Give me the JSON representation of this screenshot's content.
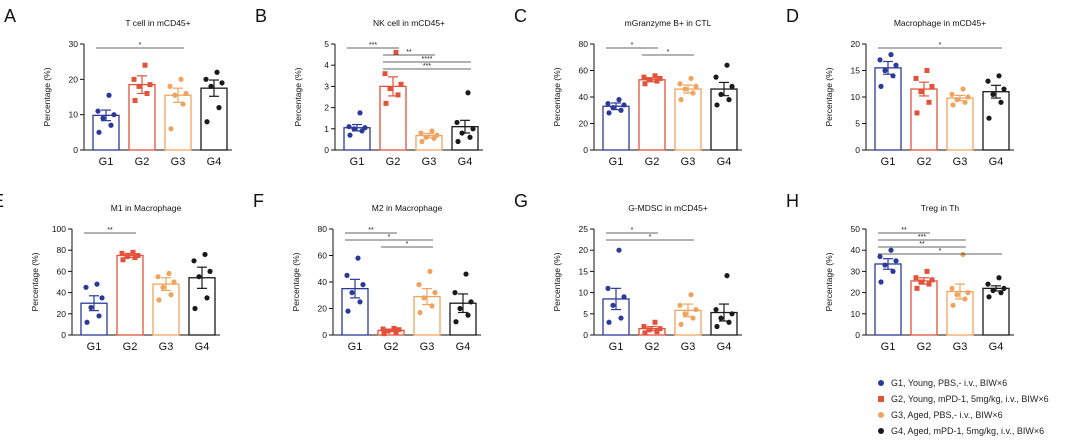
{
  "group_colors": {
    "G1": "#2b3a9a",
    "G2": "#e2523b",
    "G3": "#f0a35e",
    "G4": "#1a1a1a"
  },
  "legend": [
    {
      "group": "G1",
      "marker": "circle",
      "label": "G1, Young, PBS,-  i.v., BIW×6"
    },
    {
      "group": "G2",
      "marker": "square",
      "label": "G2, Young, mPD-1, 5mg/kg, i.v., BIW×6"
    },
    {
      "group": "G3",
      "marker": "circle",
      "label": "G3, Aged, PBS,-  i.v., BIW×6"
    },
    {
      "group": "G4",
      "marker": "circle",
      "label": "G4, Aged, mPD-1, 5mg/kg, i.v., BIW×6"
    }
  ],
  "chart_data": [
    {
      "panel": "A",
      "type": "bar",
      "title": "T cell in mCD45+",
      "ylabel": "Percentage (%)",
      "categories": [
        "G1",
        "G2",
        "G3",
        "G4"
      ],
      "ylim": [
        0,
        30
      ],
      "yticks": [
        0,
        10,
        20,
        30
      ],
      "values": [
        9.8,
        18.5,
        15.5,
        17.5
      ],
      "sem": [
        1.5,
        2.5,
        2.0,
        2.3
      ],
      "points": [
        [
          5,
          7,
          9,
          10,
          11,
          15.5
        ],
        [
          14,
          16,
          18,
          18.5,
          20,
          24
        ],
        [
          6,
          13,
          15.5,
          16,
          18,
          20
        ],
        [
          8,
          12,
          18,
          19,
          20,
          22
        ]
      ],
      "significance": [
        {
          "from": 0,
          "to": 2,
          "label": "*"
        }
      ]
    },
    {
      "panel": "B",
      "type": "bar",
      "title": "NK cell in mCD45+",
      "ylabel": "Percentage (%)",
      "categories": [
        "G1",
        "G2",
        "G3",
        "G4"
      ],
      "ylim": [
        0,
        5
      ],
      "yticks": [
        0,
        1,
        2,
        3,
        4,
        5
      ],
      "values": [
        1.05,
        3.0,
        0.68,
        1.1
      ],
      "sem": [
        0.15,
        0.45,
        0.1,
        0.3
      ],
      "points": [
        [
          0.7,
          0.9,
          1.0,
          1.05,
          1.1,
          1.75
        ],
        [
          2.2,
          2.6,
          2.9,
          3.1,
          3.6,
          4.6
        ],
        [
          0.4,
          0.55,
          0.6,
          0.7,
          0.8,
          0.9
        ],
        [
          0.4,
          0.6,
          0.8,
          1.0,
          1.3,
          2.7
        ]
      ],
      "significance": [
        {
          "from": 0,
          "to": 1,
          "label": "***"
        },
        {
          "from": 1,
          "to": 2,
          "label": "**"
        },
        {
          "from": 1,
          "to": 3,
          "label": "****"
        },
        {
          "from": 1,
          "to": 3,
          "label": "***"
        }
      ]
    },
    {
      "panel": "C",
      "type": "bar",
      "title": "mGranzyme B+ in CTL",
      "ylabel": "Percentage (%)",
      "categories": [
        "G1",
        "G2",
        "G3",
        "G4"
      ],
      "ylim": [
        0,
        80
      ],
      "yticks": [
        0,
        20,
        40,
        60,
        80
      ],
      "values": [
        33,
        53,
        46,
        46
      ],
      "sem": [
        2.5,
        1.5,
        3.0,
        5.0
      ],
      "points": [
        [
          28,
          30,
          32,
          34,
          35,
          38
        ],
        [
          50,
          52,
          53,
          54,
          55,
          56
        ],
        [
          38,
          43,
          46,
          48,
          50,
          54
        ],
        [
          34,
          38,
          42,
          48,
          55,
          64
        ]
      ],
      "significance": [
        {
          "from": 0,
          "to": 1,
          "label": "*"
        },
        {
          "from": 1,
          "to": 2,
          "label": "*"
        }
      ]
    },
    {
      "panel": "D",
      "type": "bar",
      "title": "Macrophage in mCD45+",
      "ylabel": "Percentage (%)",
      "categories": [
        "G1",
        "G2",
        "G3",
        "G4"
      ],
      "ylim": [
        0,
        20
      ],
      "yticks": [
        0,
        5,
        10,
        15,
        20
      ],
      "values": [
        15.5,
        11.5,
        9.8,
        11
      ],
      "sem": [
        1.2,
        1.3,
        0.5,
        1.2
      ],
      "points": [
        [
          12,
          14,
          15,
          16,
          17,
          18
        ],
        [
          7,
          9,
          11,
          12,
          13.5,
          15
        ],
        [
          8.5,
          9,
          9.5,
          10,
          10.5,
          11.5
        ],
        [
          6,
          9,
          10.5,
          11.5,
          13,
          14
        ]
      ],
      "significance": [
        {
          "from": 0,
          "to": 3,
          "label": "*"
        }
      ]
    },
    {
      "panel": "E",
      "type": "bar",
      "title": "M1 in Macrophage",
      "ylabel": "Percentage (%)",
      "categories": [
        "G1",
        "G2",
        "G3",
        "G4"
      ],
      "ylim": [
        0,
        100
      ],
      "yticks": [
        0,
        20,
        40,
        60,
        80,
        100
      ],
      "values": [
        30,
        75,
        48,
        54
      ],
      "sem": [
        7,
        2,
        6,
        10
      ],
      "points": [
        [
          12,
          18,
          26,
          35,
          45,
          48
        ],
        [
          71,
          73,
          74,
          75,
          77,
          78
        ],
        [
          33,
          38,
          45,
          50,
          55,
          58
        ],
        [
          25,
          35,
          55,
          60,
          70,
          76
        ]
      ],
      "significance": [
        {
          "from": 0,
          "to": 1,
          "label": "**"
        }
      ]
    },
    {
      "panel": "F",
      "type": "bar",
      "title": "M2 in Macrophage",
      "ylabel": "Percentage (%)",
      "categories": [
        "G1",
        "G2",
        "G3",
        "G4"
      ],
      "ylim": [
        0,
        80
      ],
      "yticks": [
        0,
        20,
        40,
        60,
        80
      ],
      "values": [
        35,
        3.5,
        29,
        24
      ],
      "sem": [
        7,
        1,
        6,
        7
      ],
      "points": [
        [
          18,
          25,
          32,
          38,
          45,
          58
        ],
        [
          1,
          2,
          3,
          4,
          4.5,
          5
        ],
        [
          17,
          22,
          28,
          32,
          38,
          48
        ],
        [
          10,
          15,
          20,
          25,
          32,
          46
        ]
      ],
      "significance": [
        {
          "from": 0,
          "to": 1,
          "label": "**"
        },
        {
          "from": 0,
          "to": 2,
          "label": "*"
        },
        {
          "from": 1,
          "to": 2,
          "label": "*"
        }
      ]
    },
    {
      "panel": "G",
      "type": "bar",
      "title": "G-MDSC in mCD45+",
      "ylabel": "Percentage (%)",
      "categories": [
        "G1",
        "G2",
        "G3",
        "G4"
      ],
      "ylim": [
        0,
        25
      ],
      "yticks": [
        0,
        5,
        10,
        15,
        20,
        25
      ],
      "values": [
        8.5,
        1.5,
        5.8,
        5.3
      ],
      "sem": [
        2.5,
        0.5,
        1.5,
        2.0
      ],
      "points": [
        [
          3,
          4,
          7,
          9,
          11,
          20
        ],
        [
          0.5,
          0.8,
          1.2,
          1.5,
          2,
          3
        ],
        [
          2.5,
          4,
          5,
          6,
          7,
          9.5
        ],
        [
          2,
          3,
          4,
          5,
          6,
          14
        ]
      ],
      "significance": [
        {
          "from": 0,
          "to": 1,
          "label": "*"
        },
        {
          "from": 0,
          "to": 2,
          "label": "*"
        }
      ]
    },
    {
      "panel": "H",
      "type": "bar",
      "title": "Treg in Th",
      "ylabel": "Percentage (%)",
      "categories": [
        "G1",
        "G2",
        "G3",
        "G4"
      ],
      "ylim": [
        0,
        50
      ],
      "yticks": [
        0,
        10,
        20,
        30,
        40,
        50
      ],
      "values": [
        33.5,
        25.5,
        20.5,
        22
      ],
      "sem": [
        2.5,
        1.5,
        3.5,
        1.2
      ],
      "points": [
        [
          25,
          30,
          33,
          35,
          37,
          40
        ],
        [
          22,
          24,
          25,
          26,
          27,
          30
        ],
        [
          14,
          17,
          19,
          20,
          22,
          38
        ],
        [
          18,
          20,
          21,
          22,
          24,
          27
        ]
      ],
      "significance": [
        {
          "from": 0,
          "to": 1,
          "label": "**"
        },
        {
          "from": 0,
          "to": 2,
          "label": "***"
        },
        {
          "from": 0,
          "to": 2,
          "label": "**"
        },
        {
          "from": 0,
          "to": 3,
          "label": "*"
        }
      ]
    }
  ]
}
